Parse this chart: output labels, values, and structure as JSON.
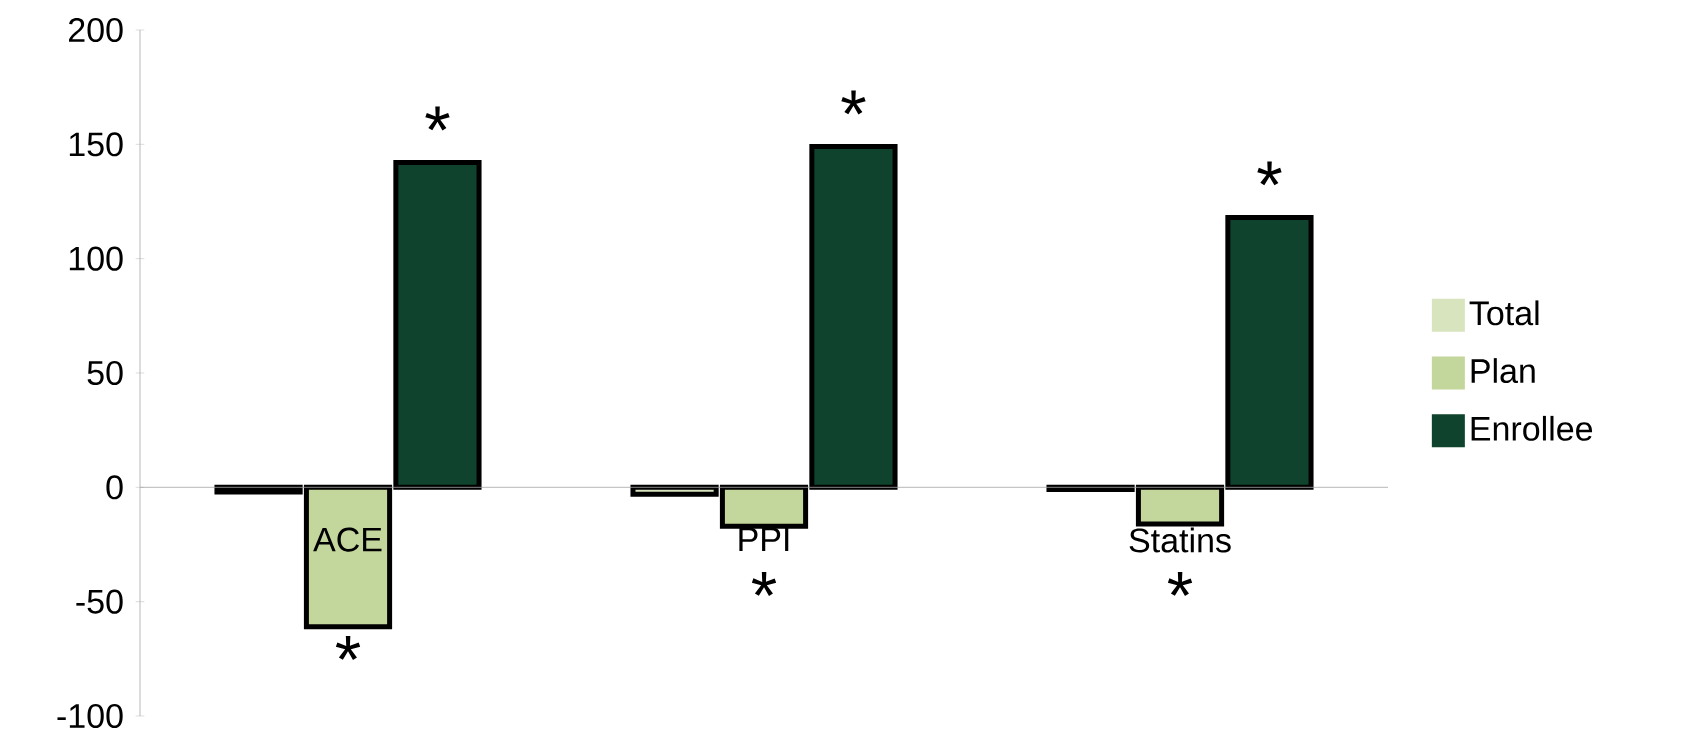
{
  "chart_data": {
    "type": "bar",
    "categories": [
      "ACE",
      "PPI",
      "Statins"
    ],
    "series": [
      {
        "name": "Total",
        "color": "#d7e4bd",
        "values": [
          -2,
          -3,
          -1
        ]
      },
      {
        "name": "Plan",
        "color": "#c3d69b",
        "values": [
          -61,
          -17,
          -16
        ]
      },
      {
        "name": "Enrollee",
        "color": "#0f432d",
        "values": [
          142,
          149,
          118
        ]
      }
    ],
    "ylim": [
      -100,
      200
    ],
    "yticks": [
      -100,
      -50,
      0,
      50,
      100,
      150,
      200
    ],
    "legend": "right",
    "annotations": [
      "*",
      "*",
      "*",
      "*",
      "*",
      "*"
    ]
  }
}
